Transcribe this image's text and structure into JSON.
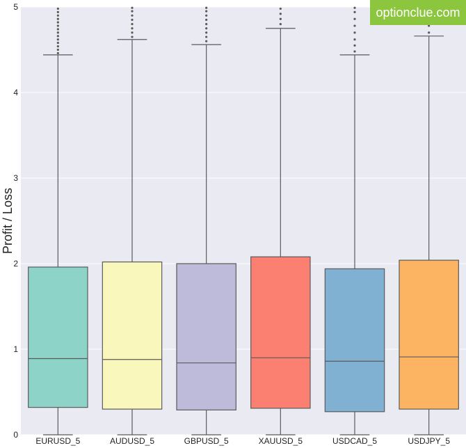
{
  "watermark": {
    "text": "optionclue.com",
    "color": "#8cc63f"
  },
  "chart_data": {
    "type": "box",
    "title": "",
    "xlabel": "",
    "ylabel": "Profit / Loss",
    "ylim": [
      0,
      5
    ],
    "yticks": [
      0,
      1,
      2,
      3,
      4,
      5
    ],
    "grid": true,
    "background": "#eaeaf2",
    "categories": [
      "EURUSD_5",
      "AUDUSD_5",
      "GBPUSD_5",
      "XAUUSD_5",
      "USDCAD_5",
      "USDJPY_5"
    ],
    "boxes": [
      {
        "name": "EURUSD_5",
        "whisker_low": 0.0,
        "q1": 0.32,
        "median": 0.89,
        "q3": 1.96,
        "whisker_high": 4.44,
        "color": "#8dd3c7"
      },
      {
        "name": "AUDUSD_5",
        "whisker_low": 0.0,
        "q1": 0.3,
        "median": 0.88,
        "q3": 2.02,
        "whisker_high": 4.62,
        "color": "#f9f7bb"
      },
      {
        "name": "GBPUSD_5",
        "whisker_low": 0.0,
        "q1": 0.29,
        "median": 0.84,
        "q3": 2.0,
        "whisker_high": 4.56,
        "color": "#bebada"
      },
      {
        "name": "XAUUSD_5",
        "whisker_low": 0.0,
        "q1": 0.31,
        "median": 0.9,
        "q3": 2.08,
        "whisker_high": 4.75,
        "color": "#fb8072"
      },
      {
        "name": "USDCAD_5",
        "whisker_low": 0.0,
        "q1": 0.27,
        "median": 0.86,
        "q3": 1.94,
        "whisker_high": 4.44,
        "color": "#80b1d3"
      },
      {
        "name": "USDJPY_5",
        "whisker_low": 0.0,
        "q1": 0.3,
        "median": 0.91,
        "q3": 2.04,
        "whisker_high": 4.66,
        "color": "#fdb462"
      }
    ],
    "outliers": [
      [
        4.46,
        4.5,
        4.54,
        4.58,
        4.62,
        4.66,
        4.7,
        4.74,
        4.78,
        4.82,
        4.86,
        4.9,
        4.94,
        4.98
      ],
      [
        4.65,
        4.7,
        4.75,
        4.8,
        4.85,
        4.9,
        4.95,
        4.99
      ],
      [
        4.6,
        4.65,
        4.7,
        4.75,
        4.8,
        4.85,
        4.9,
        4.95,
        4.99
      ],
      [
        4.8,
        4.86,
        4.92,
        4.98
      ],
      [
        4.48,
        4.55,
        4.62,
        4.7,
        4.78,
        4.86,
        4.94,
        4.99
      ],
      [
        4.7,
        4.78,
        4.86,
        4.94
      ]
    ]
  }
}
